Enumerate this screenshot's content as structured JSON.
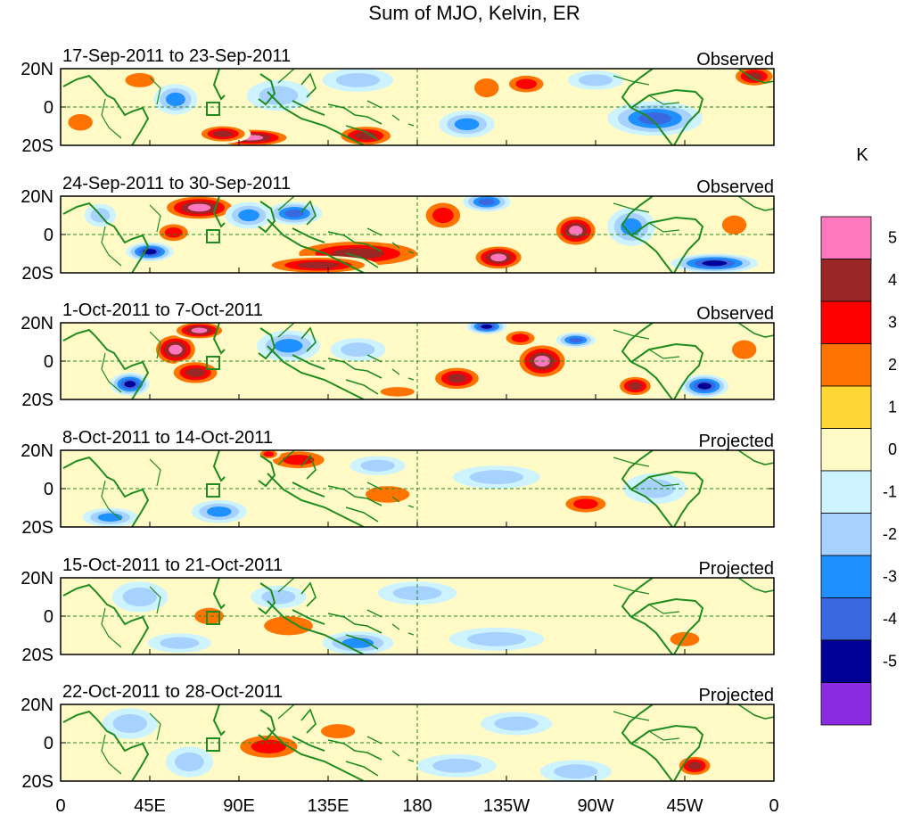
{
  "chart_data": {
    "type": "heatmap",
    "title": "Sum of MJO, Kelvin, ER",
    "units_label": "K",
    "colorbar_ticks": [
      "5",
      "4",
      "3",
      "2",
      "1",
      "0",
      "-1",
      "-2",
      "-3",
      "-4",
      "-5"
    ],
    "colorbar_colors": [
      "#ff77be",
      "#9a2626",
      "#ff0000",
      "#ff7300",
      "#ffd735",
      "#fffac6",
      "#cdf3ff",
      "#a7d2ff",
      "#1e90ff",
      "#3a68e0",
      "#000096",
      "#8a2be2"
    ],
    "x_ticks": [
      "0",
      "45E",
      "90E",
      "135E",
      "180",
      "135W",
      "90W",
      "45W",
      "0"
    ],
    "x_values": [
      0,
      45,
      90,
      135,
      180,
      225,
      270,
      315,
      360
    ],
    "xlim": [
      0,
      360
    ],
    "y_ticks": [
      "20N",
      "0",
      "20S"
    ],
    "y_values": [
      20,
      0,
      -20
    ],
    "ylim": [
      -20,
      20
    ],
    "panels": [
      {
        "period": "17-Sep-2011 to 23-Sep-2011",
        "status": "Observed",
        "blobs": [
          {
            "lon": 96,
            "lat": -16,
            "rx": 22,
            "ry": 5,
            "v": 5
          },
          {
            "lon": 82,
            "lat": -14,
            "rx": 14,
            "ry": 5,
            "v": 3.5
          },
          {
            "lon": 154,
            "lat": -15,
            "rx": 16,
            "ry": 6,
            "v": 3.5
          },
          {
            "lon": 235,
            "lat": 12,
            "rx": 12,
            "ry": 6,
            "v": 3
          },
          {
            "lon": 215,
            "lat": 10,
            "rx": 10,
            "ry": 8,
            "v": 2
          },
          {
            "lon": 350,
            "lat": 16,
            "rx": 12,
            "ry": 6,
            "v": 3.5
          },
          {
            "lon": 40,
            "lat": 14,
            "rx": 12,
            "ry": 6,
            "v": 1.6
          },
          {
            "lon": 58,
            "lat": 4,
            "rx": 11,
            "ry": 8,
            "v": -2.8
          },
          {
            "lon": 110,
            "lat": 6,
            "rx": 16,
            "ry": 8,
            "v": -1.8
          },
          {
            "lon": 205,
            "lat": -9,
            "rx": 14,
            "ry": 7,
            "v": -2.2
          },
          {
            "lon": 300,
            "lat": -6,
            "rx": 24,
            "ry": 9,
            "v": -3.8
          },
          {
            "lon": 150,
            "lat": 14,
            "rx": 18,
            "ry": 6,
            "v": -1.6
          },
          {
            "lon": 10,
            "lat": -8,
            "rx": 10,
            "ry": 7,
            "v": 1.2
          },
          {
            "lon": 270,
            "lat": 14,
            "rx": 14,
            "ry": 5,
            "v": -1.4
          }
        ]
      },
      {
        "period": "24-Sep-2011 to 30-Sep-2011",
        "status": "Observed",
        "blobs": [
          {
            "lon": 70,
            "lat": 14,
            "rx": 20,
            "ry": 7,
            "v": 4.4
          },
          {
            "lon": 57,
            "lat": 1,
            "rx": 10,
            "ry": 6,
            "v": 3
          },
          {
            "lon": 150,
            "lat": -10,
            "rx": 38,
            "ry": 8,
            "v": 3.4
          },
          {
            "lon": 130,
            "lat": -16,
            "rx": 30,
            "ry": 5,
            "v": 4
          },
          {
            "lon": 193,
            "lat": 10,
            "rx": 12,
            "ry": 9,
            "v": 2.8
          },
          {
            "lon": 221,
            "lat": -12,
            "rx": 14,
            "ry": 7,
            "v": 4.3
          },
          {
            "lon": 260,
            "lat": 2,
            "rx": 12,
            "ry": 9,
            "v": 5
          },
          {
            "lon": 340,
            "lat": 5,
            "rx": 10,
            "ry": 8,
            "v": 2
          },
          {
            "lon": 45,
            "lat": -9,
            "rx": 12,
            "ry": 5,
            "v": -4.2
          },
          {
            "lon": 95,
            "lat": 10,
            "rx": 12,
            "ry": 7,
            "v": -2.5
          },
          {
            "lon": 118,
            "lat": 11,
            "rx": 14,
            "ry": 6,
            "v": -3.8
          },
          {
            "lon": 215,
            "lat": 17,
            "rx": 12,
            "ry": 5,
            "v": -3.5
          },
          {
            "lon": 288,
            "lat": 4,
            "rx": 12,
            "ry": 10,
            "v": -2.6
          },
          {
            "lon": 330,
            "lat": -15,
            "rx": 22,
            "ry": 5,
            "v": -4.5
          },
          {
            "lon": 20,
            "lat": 10,
            "rx": 8,
            "ry": 6,
            "v": -1.4
          }
        ]
      },
      {
        "period": "1-Oct-2011 to 7-Oct-2011",
        "status": "Observed",
        "blobs": [
          {
            "lon": 58,
            "lat": 6,
            "rx": 12,
            "ry": 9,
            "v": 5
          },
          {
            "lon": 70,
            "lat": 16,
            "rx": 14,
            "ry": 5,
            "v": 4.4
          },
          {
            "lon": 68,
            "lat": -6,
            "rx": 14,
            "ry": 7,
            "v": 3.5
          },
          {
            "lon": 200,
            "lat": -9,
            "rx": 14,
            "ry": 7,
            "v": 4
          },
          {
            "lon": 243,
            "lat": 0,
            "rx": 14,
            "ry": 10,
            "v": 5
          },
          {
            "lon": 232,
            "lat": 12,
            "rx": 10,
            "ry": 5,
            "v": 3
          },
          {
            "lon": 290,
            "lat": -13,
            "rx": 10,
            "ry": 6,
            "v": 3.5
          },
          {
            "lon": 345,
            "lat": 6,
            "rx": 10,
            "ry": 8,
            "v": 2
          },
          {
            "lon": 35,
            "lat": -12,
            "rx": 10,
            "ry": 6,
            "v": -4.5
          },
          {
            "lon": 115,
            "lat": 8,
            "rx": 16,
            "ry": 8,
            "v": -2.2
          },
          {
            "lon": 215,
            "lat": 18,
            "rx": 10,
            "ry": 4,
            "v": -5
          },
          {
            "lon": 260,
            "lat": 11,
            "rx": 10,
            "ry": 4,
            "v": -3.5
          },
          {
            "lon": 325,
            "lat": -13,
            "rx": 12,
            "ry": 6,
            "v": -4.3
          },
          {
            "lon": 150,
            "lat": 6,
            "rx": 14,
            "ry": 6,
            "v": -1.5
          },
          {
            "lon": 170,
            "lat": -16,
            "rx": 14,
            "ry": 4,
            "v": 1.8
          }
        ]
      },
      {
        "period": "8-Oct-2011 to 14-Oct-2011",
        "status": "Projected",
        "blobs": [
          {
            "lon": 120,
            "lat": 15,
            "rx": 18,
            "ry": 6,
            "v": 2.4
          },
          {
            "lon": 105,
            "lat": 18,
            "rx": 6,
            "ry": 3,
            "v": 3
          },
          {
            "lon": 165,
            "lat": -3,
            "rx": 18,
            "ry": 7,
            "v": 1.5
          },
          {
            "lon": 265,
            "lat": -8,
            "rx": 14,
            "ry": 6,
            "v": 2.2
          },
          {
            "lon": 60,
            "lat": 5,
            "rx": 16,
            "ry": 10,
            "v": 0.9
          },
          {
            "lon": 80,
            "lat": -12,
            "rx": 14,
            "ry": 6,
            "v": -2.6
          },
          {
            "lon": 25,
            "lat": -15,
            "rx": 14,
            "ry": 5,
            "v": -2.2
          },
          {
            "lon": 160,
            "lat": 12,
            "rx": 14,
            "ry": 5,
            "v": -1.2
          },
          {
            "lon": 220,
            "lat": 6,
            "rx": 22,
            "ry": 6,
            "v": -1.4
          },
          {
            "lon": 300,
            "lat": 0,
            "rx": 16,
            "ry": 8,
            "v": -1.3
          }
        ]
      },
      {
        "period": "15-Oct-2011 to 21-Oct-2011",
        "status": "Projected",
        "blobs": [
          {
            "lon": 75,
            "lat": 0,
            "rx": 12,
            "ry": 7,
            "v": 2
          },
          {
            "lon": 115,
            "lat": -5,
            "rx": 20,
            "ry": 8,
            "v": 1.1
          },
          {
            "lon": 315,
            "lat": -12,
            "rx": 12,
            "ry": 6,
            "v": 1.8
          },
          {
            "lon": 40,
            "lat": 10,
            "rx": 14,
            "ry": 8,
            "v": -1.6
          },
          {
            "lon": 110,
            "lat": 10,
            "rx": 14,
            "ry": 6,
            "v": -1.5
          },
          {
            "lon": 150,
            "lat": -14,
            "rx": 18,
            "ry": 6,
            "v": -2.1
          },
          {
            "lon": 220,
            "lat": -12,
            "rx": 24,
            "ry": 6,
            "v": -1.3
          },
          {
            "lon": 180,
            "lat": 12,
            "rx": 20,
            "ry": 6,
            "v": -1.1
          },
          {
            "lon": 60,
            "lat": -14,
            "rx": 16,
            "ry": 5,
            "v": -1.3
          }
        ]
      },
      {
        "period": "22-Oct-2011 to 28-Oct-2011",
        "status": "Projected",
        "blobs": [
          {
            "lon": 105,
            "lat": -2,
            "rx": 20,
            "ry": 8,
            "v": 2.3
          },
          {
            "lon": 140,
            "lat": 6,
            "rx": 14,
            "ry": 6,
            "v": 1.3
          },
          {
            "lon": 320,
            "lat": -12,
            "rx": 10,
            "ry": 6,
            "v": 3.3
          },
          {
            "lon": 35,
            "lat": 10,
            "rx": 14,
            "ry": 8,
            "v": -1.8
          },
          {
            "lon": 65,
            "lat": -10,
            "rx": 12,
            "ry": 8,
            "v": -1.5
          },
          {
            "lon": 200,
            "lat": -12,
            "rx": 20,
            "ry": 6,
            "v": -1.5
          },
          {
            "lon": 260,
            "lat": -15,
            "rx": 18,
            "ry": 6,
            "v": -1.8
          },
          {
            "lon": 230,
            "lat": 10,
            "rx": 18,
            "ry": 6,
            "v": -1.1
          }
        ]
      }
    ]
  }
}
